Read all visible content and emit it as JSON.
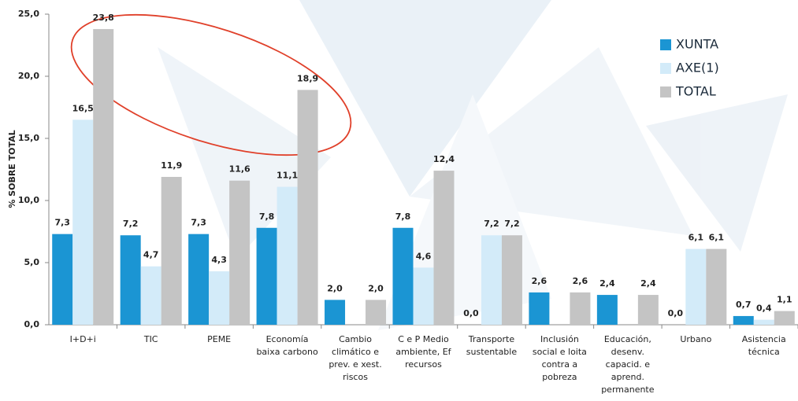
{
  "chart_data": {
    "type": "bar",
    "y_label": "% SOBRE TOTAL",
    "categories": [
      "I+D+i",
      "TIC",
      "PEME",
      "Economía\nbaixa carbono",
      "Cambio\nclimático e\nprev. e xest.\nriscos",
      "C e P Medio\nambiente, Ef\nrecursos",
      "Transporte\nsustentable",
      "Inclusión\nsocial e loita\ncontra a\npobreza",
      "Educación,\ndesenv.\ncapacid. e\naprend.\npermanente",
      "Urbano",
      "Asistencia\ntécnica"
    ],
    "series": [
      {
        "name": "XUNTA",
        "color": "#1b95d3",
        "values": [
          7.3,
          7.2,
          7.3,
          7.8,
          2.0,
          7.8,
          0.0,
          2.6,
          2.4,
          0.0,
          0.7
        ],
        "value_labels": [
          "7,3",
          "7,2",
          "7,3",
          "7,8",
          "2,0",
          "7,8",
          "0,0",
          "2,6",
          "2,4",
          "0,0",
          "0,7"
        ]
      },
      {
        "name": "AXE(1)",
        "color": "#d3ebf9",
        "values": [
          16.5,
          4.7,
          4.3,
          11.1,
          null,
          4.6,
          7.2,
          null,
          null,
          6.1,
          0.4
        ],
        "value_labels": [
          "16,5",
          "4,7",
          "4,3",
          "11,1",
          null,
          "4,6",
          "7,2",
          null,
          null,
          "6,1",
          "0,4"
        ]
      },
      {
        "name": "TOTAL",
        "color": "#c4c4c4",
        "values": [
          23.8,
          11.9,
          11.6,
          18.9,
          2.0,
          12.4,
          7.2,
          2.6,
          2.4,
          6.1,
          1.1
        ],
        "value_labels": [
          "23,8",
          "11,9",
          "11,6",
          "18,9",
          "2,0",
          "12,4",
          "7,2",
          "2,6",
          "2,4",
          "6,1",
          "1,1"
        ]
      }
    ],
    "ylim": [
      0,
      25
    ],
    "yticks": [
      {
        "value": 0,
        "label": "0,0"
      },
      {
        "value": 5,
        "label": "5,0"
      },
      {
        "value": 10,
        "label": "10,0"
      },
      {
        "value": 15,
        "label": "15,0"
      },
      {
        "value": 20,
        "label": "20,0"
      },
      {
        "value": 25,
        "label": "25,0"
      }
    ],
    "grid": false,
    "legend": "top-right"
  }
}
